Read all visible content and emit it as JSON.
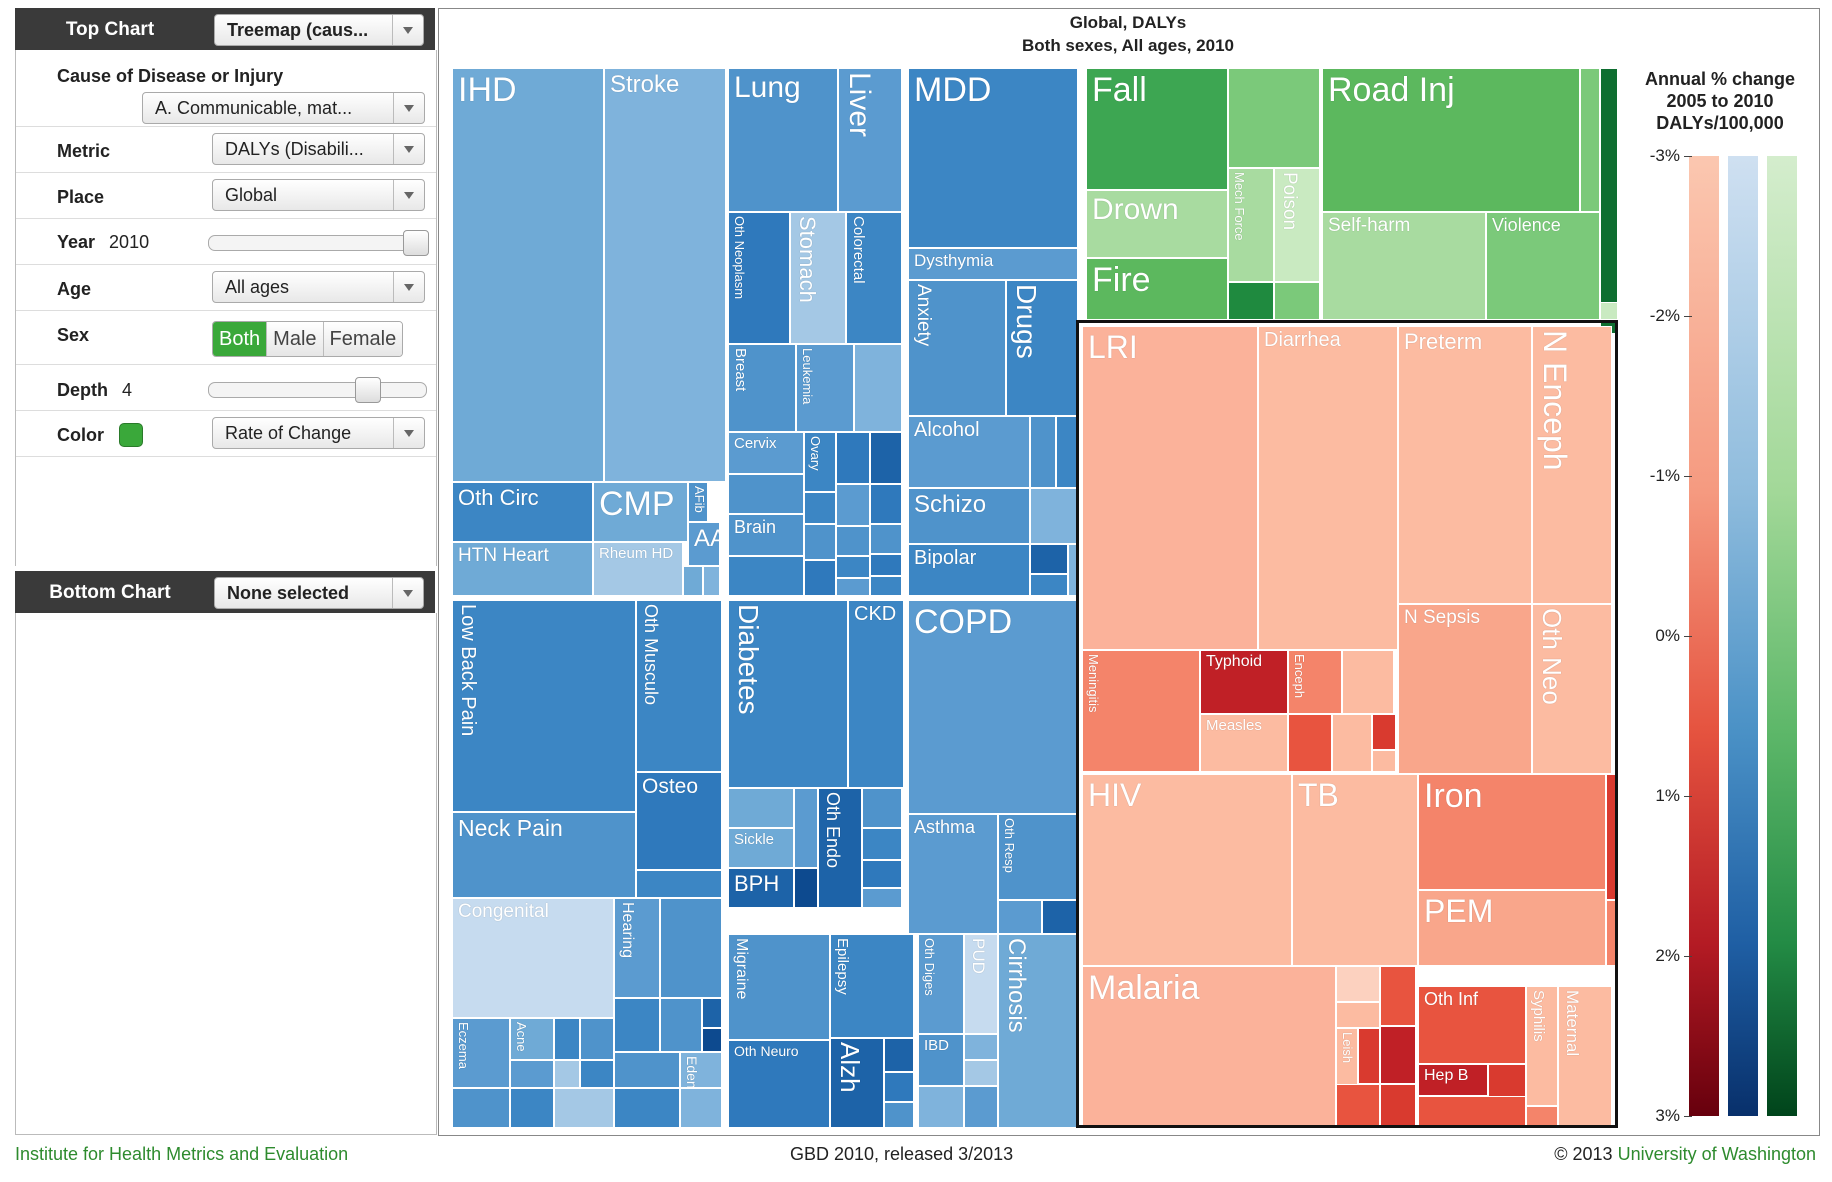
{
  "panel": {
    "top_chart": {
      "title": "Top Chart",
      "select": "Treemap (caus..."
    },
    "cause": {
      "label": "Cause of Disease or Injury",
      "select": "A. Communicable, mat..."
    },
    "metric": {
      "label": "Metric",
      "select": "DALYs (Disabili..."
    },
    "place": {
      "label": "Place",
      "select": "Global"
    },
    "year": {
      "label": "Year",
      "value": "2010",
      "level": 1.0
    },
    "age": {
      "label": "Age",
      "select": "All ages"
    },
    "sex": {
      "label": "Sex",
      "options": [
        "Both",
        "Male",
        "Female"
      ],
      "selected": "Both"
    },
    "depth": {
      "label": "Depth",
      "value": "4",
      "level": 0.75
    },
    "color": {
      "label": "Color",
      "swatch": "#3aa83a",
      "select": "Rate of Change"
    },
    "bottom_chart": {
      "title": "Bottom Chart",
      "select": "None selected"
    }
  },
  "chart": {
    "title_line1": "Global, DALYs",
    "title_line2": "Both sexes, All ages, 2010",
    "legend": {
      "title_lines": [
        "Annual % change",
        "2005 to 2010",
        "DALYs/100,000"
      ],
      "ticks": [
        "-3%",
        "-2%",
        "-1%",
        "0%",
        "1%",
        "2%",
        "3%"
      ]
    },
    "labels": {
      "ihd": "IHD",
      "stroke": "Stroke",
      "lung": "Lung",
      "liver": "Liver",
      "mdd": "MDD",
      "fall": "Fall",
      "road_inj": "Road Inj",
      "oth_circ": "Oth Circ",
      "cmp": "CMP",
      "afib": "AFib",
      "htn_heart": "HTN Heart",
      "rheum_hd": "Rheum HD",
      "aa": "AA",
      "oth_neoplasm": "Oth Neoplasm",
      "stomach": "Stomach",
      "colorectal": "Colorectal",
      "breast": "Breast",
      "leukemia": "Leukemia",
      "cervix": "Cervix",
      "ovary": "Ovary",
      "brain": "Brain",
      "dysthymia": "Dysthymia",
      "anxiety": "Anxiety",
      "drugs": "Drugs",
      "alcohol": "Alcohol",
      "schizo": "Schizo",
      "bipolar": "Bipolar",
      "drown": "Drown",
      "mech_force": "Mech Force",
      "poison": "Poison",
      "fire": "Fire",
      "self_harm": "Self-harm",
      "violence": "Violence",
      "low_back_pain": "Low Back Pain",
      "oth_musculo": "Oth Musculo",
      "osteo": "Osteo",
      "neck_pain": "Neck Pain",
      "diabetes": "Diabetes",
      "ckd": "CKD",
      "sickle": "Sickle",
      "oth_endo": "Oth Endo",
      "bph": "BPH",
      "copd": "COPD",
      "asthma": "Asthma",
      "oth_resp": "Oth Resp",
      "congenital": "Congenital",
      "hearing": "Hearing",
      "eczema": "Eczema",
      "acne": "Acne",
      "edent": "Edent",
      "migraine": "Migraine",
      "epilepsy": "Epilepsy",
      "oth_neuro": "Oth Neuro",
      "alzh": "Alzh",
      "oth_diges": "Oth Diges",
      "pud": "PUD",
      "cirrhosis": "Cirrhosis",
      "ibd": "IBD",
      "lri": "LRI",
      "diarrhea": "Diarrhea",
      "preterm": "Preterm",
      "n_enceph": "N Enceph",
      "n_sepsis": "N Sepsis",
      "oth_neo": "Oth Neo",
      "meningitis": "Meningitis",
      "typhoid": "Typhoid",
      "enceph": "Enceph",
      "measles": "Measles",
      "hiv": "HIV",
      "tb": "TB",
      "iron": "Iron",
      "pem": "PEM",
      "malaria": "Malaria",
      "leish": "Leish",
      "oth_inf": "Oth Inf",
      "syphilis": "Syphilis",
      "maternal": "Maternal",
      "hep_b": "Hep B"
    }
  },
  "footer": {
    "left": "Institute for Health Metrics and Evaluation",
    "center": "GBD 2010, released 3/2013",
    "right_prefix": "© 2013 ",
    "right_link": "University of Washington"
  }
}
